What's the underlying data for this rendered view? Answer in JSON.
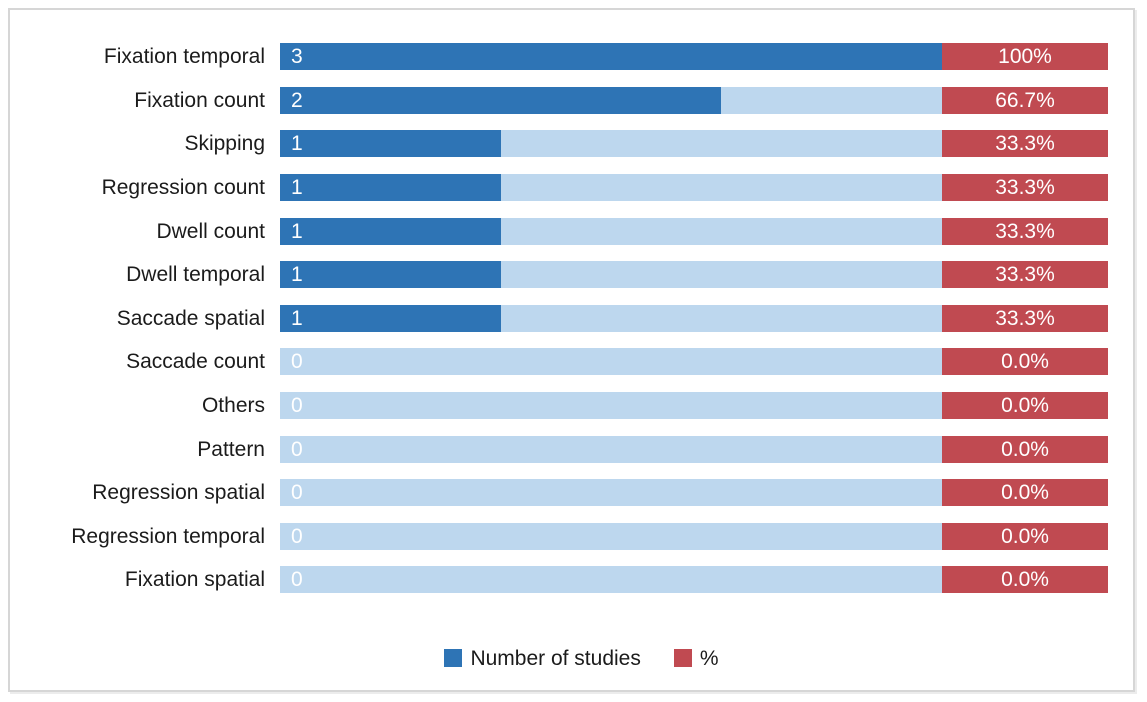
{
  "chart_data": {
    "type": "bar",
    "orientation": "horizontal",
    "grid": false,
    "categories": [
      "Fixation temporal",
      "Fixation count",
      "Skipping",
      "Regression count",
      "Dwell count",
      "Dwell temporal",
      "Saccade spatial",
      "Saccade count",
      "Others",
      "Pattern",
      "Regression spatial",
      "Regression temporal",
      "Fixation spatial"
    ],
    "series": [
      {
        "name": "Number of studies",
        "color": "#2E74B5",
        "value_max": 3,
        "values": [
          3,
          2,
          1,
          1,
          1,
          1,
          1,
          0,
          0,
          0,
          0,
          0,
          0
        ]
      },
      {
        "name": "%",
        "color": "#C04A51",
        "values": [
          100,
          66.7,
          33.3,
          33.3,
          33.3,
          33.3,
          33.3,
          0.0,
          0.0,
          0.0,
          0.0,
          0.0,
          0.0
        ],
        "labels": [
          "100%",
          "66.7%",
          "33.3%",
          "33.3%",
          "33.3%",
          "33.3%",
          "33.3%",
          "0.0%",
          "0.0%",
          "0.0%",
          "0.0%",
          "0.0%",
          "0.0%"
        ]
      }
    ],
    "track_color": "#BDD7EE",
    "legend": {
      "position": "bottom",
      "items": [
        {
          "label": "Number of studies",
          "color": "#2E74B5"
        },
        {
          "label": "%",
          "color": "#C04A51"
        }
      ]
    }
  }
}
